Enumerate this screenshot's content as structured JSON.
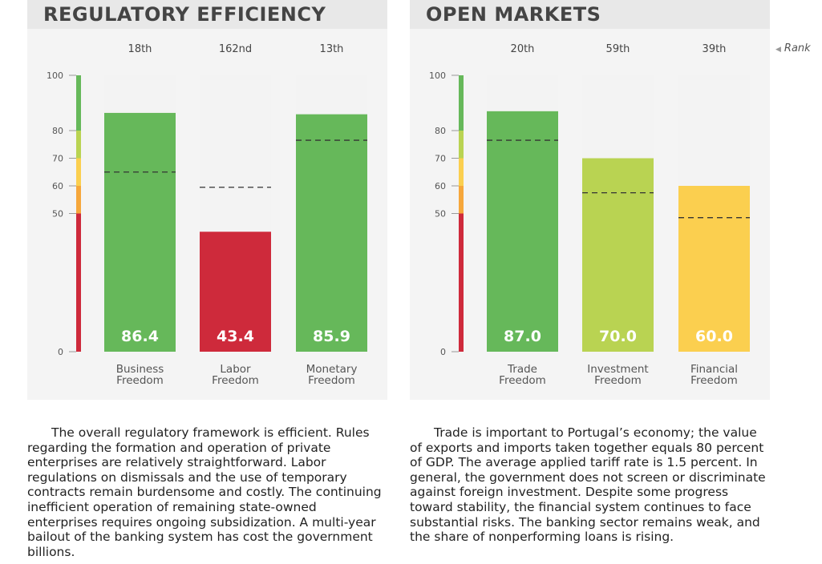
{
  "legend": {
    "rank_label": "Rank"
  },
  "colors": {
    "green": "#66b85a",
    "lightgreen": "#b9d352",
    "yellow": "#fbcf4f",
    "orange": "#f6a73b",
    "red": "#ce2a3b",
    "track": "#f3f3f3"
  },
  "panels": [
    {
      "id": "regulatory",
      "title": "REGULATORY EFFICIENCY",
      "body": "The overall regulatory framework is efficient. Rules regarding the formation and operation of private enterprises are relatively straightforward. Labor regulations on dismissals and the use of temporary contracts remain burdensome and costly. The continuing inefficient operation of remaining state-owned enterprises requires ongoing subsidization. A multi-year bailout of the banking system has cost the government billions."
    },
    {
      "id": "markets",
      "title": "OPEN MARKETS",
      "body": "Trade is important to Portugal’s economy; the value of exports and imports taken together equals 80 percent of GDP. The average applied tariff rate is 1.5 percent. In general, the government does not screen or discriminate against foreign investment. Despite some progress toward stability, the financial system continues to face substantial risks. The banking sector remains weak, and the share of nonperforming loans is rising."
    }
  ],
  "chart_data": [
    {
      "type": "bar",
      "title": "REGULATORY EFFICIENCY",
      "ylim": [
        0,
        100
      ],
      "yticks": [
        0,
        50,
        60,
        70,
        80,
        100
      ],
      "categories": [
        "Business Freedom",
        "Labor Freedom",
        "Monetary Freedom"
      ],
      "label_lines": [
        [
          "Business",
          "Freedom"
        ],
        [
          "Labor",
          "Freedom"
        ],
        [
          "Monetary",
          "Freedom"
        ]
      ],
      "values": [
        86.4,
        43.4,
        85.9
      ],
      "value_labels": [
        "86.4",
        "43.4",
        "85.9"
      ],
      "ranks": [
        "18th",
        "162nd",
        "13th"
      ],
      "world_average": [
        65,
        59.5,
        76.5
      ]
    },
    {
      "type": "bar",
      "title": "OPEN MARKETS",
      "ylim": [
        0,
        100
      ],
      "yticks": [
        0,
        50,
        60,
        70,
        80,
        100
      ],
      "categories": [
        "Trade Freedom",
        "Investment Freedom",
        "Financial Freedom"
      ],
      "label_lines": [
        [
          "Trade",
          "Freedom"
        ],
        [
          "Investment",
          "Freedom"
        ],
        [
          "Financial",
          "Freedom"
        ]
      ],
      "values": [
        87.0,
        70.0,
        60.0
      ],
      "value_labels": [
        "87.0",
        "70.0",
        "60.0"
      ],
      "ranks": [
        "20th",
        "59th",
        "39th"
      ],
      "world_average": [
        76.5,
        57.5,
        48.5
      ]
    }
  ]
}
